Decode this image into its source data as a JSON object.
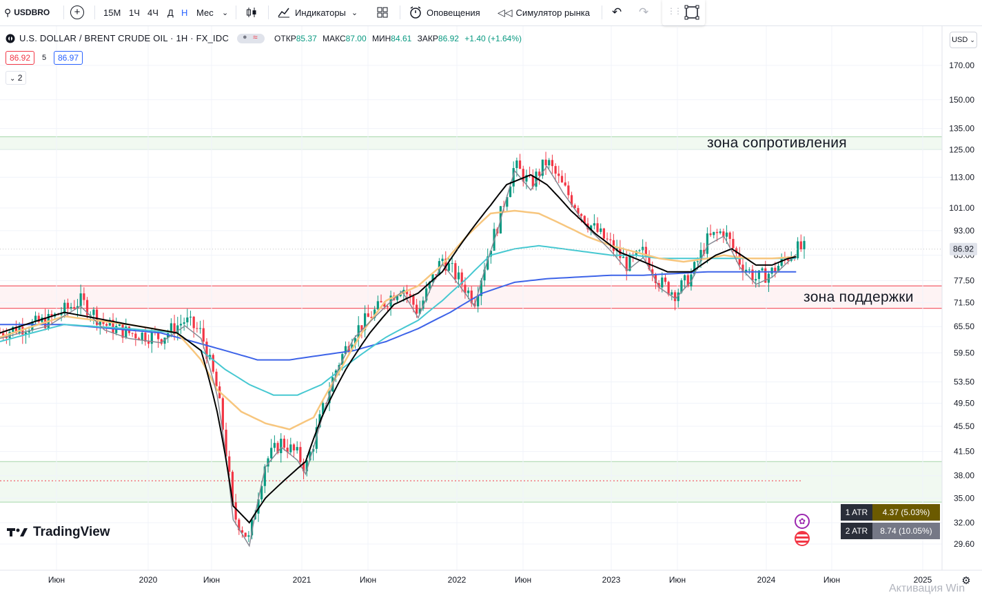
{
  "toolbar": {
    "symbol": "USDBRO",
    "intervals": [
      "15М",
      "1Ч",
      "4Ч",
      "Д",
      "Н",
      "Мес"
    ],
    "active_interval": "Н",
    "indicators_label": "Индикаторы",
    "alerts_label": "Оповещения",
    "replay_label": "Симулятор рынка"
  },
  "legend": {
    "title": "U.S. DOLLAR / BRENT CRUDE OIL · 1Н · FX_IDC",
    "open_label": "ОТКР",
    "open": "85.37",
    "high_label": "МАКС",
    "high": "87.00",
    "low_label": "МИН",
    "low": "84.61",
    "close_label": "ЗАКР",
    "close": "86.92",
    "change": "+1.40 (+1.64%)",
    "bid": "86.92",
    "spread": "5",
    "ask": "86.97",
    "collapsed_count": "2"
  },
  "currency": "USD",
  "zones": {
    "resistance_label": "зона сопротивления",
    "support_label": "зона поддержки"
  },
  "atr": [
    {
      "label": "1 ATR",
      "value": "4.37 (5.03%)",
      "color": "#6b5a00"
    },
    {
      "label": "2 ATR",
      "value": "8.74 (10.05%)",
      "color": "#757886"
    }
  ],
  "brand": "TradingView",
  "watermark": "Активация Win",
  "colors": {
    "up": "#089981",
    "down": "#f23645",
    "ema_black": "#000000",
    "ema_gray": "#868993",
    "ema_orange": "#f7c67e",
    "ema_cyan": "#46c8d1",
    "ema_blue": "#3d63e8"
  },
  "chart_data": {
    "type": "candlestick",
    "scale": "log",
    "y_ticks": [
      170.0,
      150.0,
      135.0,
      125.0,
      113.0,
      101.0,
      93.0,
      85.0,
      77.5,
      71.5,
      65.5,
      59.5,
      53.5,
      49.5,
      45.5,
      41.5,
      38.0,
      35.0,
      32.0,
      29.6
    ],
    "x_ticks": [
      "Июн",
      "2020",
      "Июн",
      "2021",
      "Июн",
      "2022",
      "Июн",
      "2023",
      "Июн",
      "2024",
      "Июн",
      "2025"
    ],
    "last_price": 86.92,
    "resistance_zone": [
      125.0,
      131.0
    ],
    "support_zone": [
      70.0,
      76.0
    ],
    "lower_zone": [
      34.5,
      40.0
    ],
    "dashed_level": 37.3,
    "price_path": [
      [
        0,
        64
      ],
      [
        6,
        67
      ],
      [
        10,
        72
      ],
      [
        13,
        66
      ],
      [
        16,
        64
      ],
      [
        20,
        63
      ],
      [
        23,
        67
      ],
      [
        25,
        64
      ],
      [
        27,
        52
      ],
      [
        29,
        33
      ],
      [
        31,
        30
      ],
      [
        33,
        40
      ],
      [
        35,
        43
      ],
      [
        37,
        41
      ],
      [
        38,
        39
      ],
      [
        39,
        43
      ],
      [
        42,
        57
      ],
      [
        44,
        64
      ],
      [
        47,
        70
      ],
      [
        50,
        76
      ],
      [
        52,
        69
      ],
      [
        55,
        84
      ],
      [
        57,
        78
      ],
      [
        59,
        72
      ],
      [
        62,
        96
      ],
      [
        64,
        118
      ],
      [
        66,
        110
      ],
      [
        68,
        120
      ],
      [
        70,
        109
      ],
      [
        73,
        96
      ],
      [
        76,
        88
      ],
      [
        78,
        82
      ],
      [
        80,
        86
      ],
      [
        82,
        77
      ],
      [
        84,
        74
      ],
      [
        86,
        79
      ],
      [
        88,
        90
      ],
      [
        90,
        93
      ],
      [
        92,
        83
      ],
      [
        94,
        78
      ],
      [
        96,
        80
      ],
      [
        99,
        87
      ]
    ],
    "ema_black": [
      [
        0,
        64
      ],
      [
        8,
        69
      ],
      [
        16,
        66
      ],
      [
        22,
        64
      ],
      [
        25,
        60
      ],
      [
        27,
        48
      ],
      [
        29,
        34
      ],
      [
        31,
        32
      ],
      [
        33,
        35
      ],
      [
        36,
        38
      ],
      [
        38,
        40
      ],
      [
        40,
        47
      ],
      [
        43,
        56
      ],
      [
        46,
        64
      ],
      [
        49,
        71
      ],
      [
        52,
        74
      ],
      [
        55,
        80
      ],
      [
        58,
        91
      ],
      [
        61,
        102
      ],
      [
        63,
        110
      ],
      [
        66,
        114
      ],
      [
        68,
        110
      ],
      [
        71,
        100
      ],
      [
        74,
        92
      ],
      [
        77,
        86
      ],
      [
        80,
        83
      ],
      [
        83,
        80
      ],
      [
        86,
        80
      ],
      [
        89,
        85
      ],
      [
        91,
        87
      ],
      [
        94,
        82
      ],
      [
        96,
        82
      ],
      [
        98,
        84
      ],
      [
        99,
        84.5
      ]
    ],
    "ema_orange": [
      [
        0,
        63
      ],
      [
        8,
        68
      ],
      [
        16,
        66
      ],
      [
        22,
        64
      ],
      [
        25,
        58
      ],
      [
        27,
        52
      ],
      [
        30,
        48
      ],
      [
        33,
        46
      ],
      [
        36,
        45
      ],
      [
        39,
        47
      ],
      [
        42,
        55
      ],
      [
        45,
        64
      ],
      [
        48,
        72
      ],
      [
        52,
        76
      ],
      [
        55,
        82
      ],
      [
        58,
        91
      ],
      [
        61,
        99
      ],
      [
        64,
        100
      ],
      [
        67,
        99
      ],
      [
        70,
        95
      ],
      [
        73,
        91
      ],
      [
        76,
        88
      ],
      [
        79,
        86
      ],
      [
        82,
        84
      ],
      [
        85,
        83
      ],
      [
        88,
        84
      ],
      [
        90,
        85
      ],
      [
        93,
        84
      ],
      [
        96,
        84
      ],
      [
        99,
        84.5
      ]
    ],
    "ema_cyan": [
      [
        0,
        62
      ],
      [
        8,
        66
      ],
      [
        16,
        65
      ],
      [
        22,
        64
      ],
      [
        25,
        60
      ],
      [
        28,
        56
      ],
      [
        31,
        53
      ],
      [
        34,
        51
      ],
      [
        37,
        51
      ],
      [
        40,
        53
      ],
      [
        44,
        58
      ],
      [
        48,
        63
      ],
      [
        52,
        67
      ],
      [
        55,
        72
      ],
      [
        58,
        78
      ],
      [
        61,
        85
      ],
      [
        64,
        87
      ],
      [
        67,
        88
      ],
      [
        70,
        87
      ],
      [
        73,
        86
      ],
      [
        76,
        85
      ],
      [
        79,
        85
      ],
      [
        82,
        84
      ],
      [
        85,
        84
      ],
      [
        88,
        84
      ],
      [
        91,
        84
      ],
      [
        94,
        84
      ],
      [
        97,
        84
      ],
      [
        99,
        84
      ]
    ],
    "ema_blue": [
      [
        0,
        66
      ],
      [
        8,
        66
      ],
      [
        14,
        65
      ],
      [
        20,
        64
      ],
      [
        24,
        62
      ],
      [
        28,
        60
      ],
      [
        32,
        58
      ],
      [
        36,
        58
      ],
      [
        40,
        59
      ],
      [
        44,
        60
      ],
      [
        48,
        62
      ],
      [
        52,
        65
      ],
      [
        56,
        69
      ],
      [
        60,
        74
      ],
      [
        64,
        77
      ],
      [
        68,
        78
      ],
      [
        72,
        78.5
      ],
      [
        76,
        79
      ],
      [
        80,
        79
      ],
      [
        84,
        79.5
      ],
      [
        88,
        80
      ],
      [
        92,
        80
      ],
      [
        96,
        80
      ],
      [
        99,
        80
      ]
    ]
  }
}
